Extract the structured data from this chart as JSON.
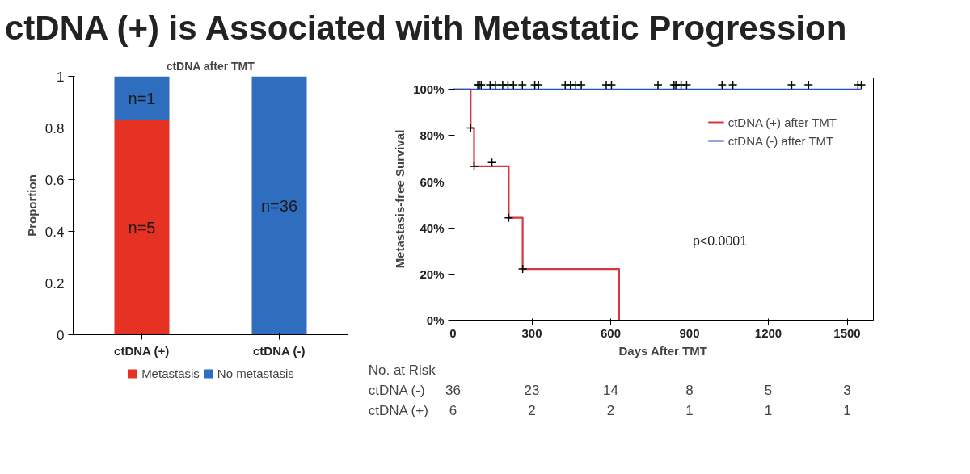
{
  "chart_data": [
    {
      "type": "bar",
      "title": "ctDNA (+) is Associated with Metastatic Progression",
      "subtitle": "ctDNA after TMT",
      "ylabel": "Proportion",
      "categories": [
        "ctDNA (+)",
        "ctDNA (-)"
      ],
      "stacked": true,
      "series": [
        {
          "name": "Metastasis",
          "color": "#e53222",
          "values": [
            0.83,
            0
          ]
        },
        {
          "name": "No metastasis",
          "color": "#2f6dbf",
          "values": [
            0.17,
            1
          ]
        }
      ],
      "annotations": [
        "n=5",
        "n=1",
        "n=36"
      ],
      "ylim": [
        0,
        1
      ],
      "yticks": [
        0,
        0.2,
        0.4,
        0.6,
        0.8,
        1
      ],
      "grid": false,
      "legend": "bottom"
    },
    {
      "type": "step",
      "xlabel": "Days After TMT",
      "ylabel": "Metastasis-free Survival",
      "xlim": [
        0,
        1600
      ],
      "ylim": [
        0,
        105
      ],
      "xticks": [
        0,
        300,
        600,
        900,
        1200,
        1500
      ],
      "yticks": [
        {
          "value": 0,
          "label": "0%"
        },
        {
          "value": 20,
          "label": "20%"
        },
        {
          "value": 40,
          "label": "40%"
        },
        {
          "value": 60,
          "label": "60%"
        },
        {
          "value": 80,
          "label": "80%"
        },
        {
          "value": 100,
          "label": "100%"
        }
      ],
      "grid": false,
      "legend": "top right",
      "series": [
        {
          "name": "ctDNA (+) after TMT",
          "color": "#d9363e",
          "x": [
            0,
            67,
            80,
            212,
            265,
            632
          ],
          "values": [
            100,
            83.3,
            66.7,
            44.4,
            22.2,
            0
          ]
        },
        {
          "name": "ctDNA (-) after TMT",
          "color": "#2050c8",
          "x": [
            0,
            1554
          ],
          "values": [
            100,
            100
          ]
        },
        {
          "type": "scatter",
          "marker": "cross",
          "color": "#000000",
          "x": [
            67,
            80,
            148,
            212,
            265
          ],
          "values": [
            83.3,
            66.7,
            68.3,
            44.4,
            22.2
          ]
        },
        {
          "type": "scatter",
          "marker": "cross",
          "color": "#000000",
          "x": [
            94,
            100,
            107,
            141,
            162,
            189,
            209,
            230,
            264,
            311,
            325,
            427,
            447,
            467,
            488,
            583,
            603,
            780,
            841,
            848,
            868,
            889,
            1024,
            1065,
            1289,
            1353,
            1541,
            1554
          ],
          "values": [
            102,
            102,
            102,
            102,
            102,
            102,
            102,
            102,
            102,
            102,
            102,
            102,
            102,
            102,
            102,
            102,
            102,
            102,
            102,
            102,
            102,
            102,
            102,
            102,
            102,
            102,
            102,
            102
          ]
        }
      ],
      "annotations": [
        "p<0.0001",
        "No. at Risk",
        "ctDNA (-)",
        "36",
        "23",
        "14",
        "8",
        "5",
        "3",
        "ctDNA (+)",
        "6",
        "2",
        "2",
        "1",
        "1",
        "1"
      ]
    }
  ]
}
